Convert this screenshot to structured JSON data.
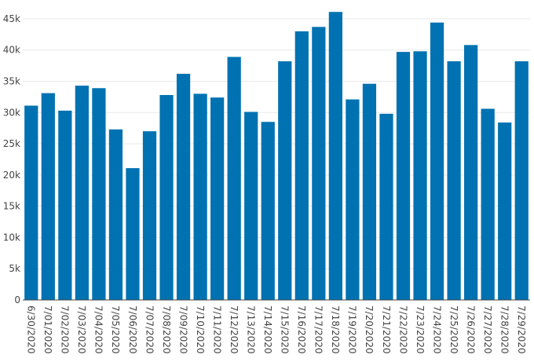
{
  "chart_data": {
    "type": "bar",
    "categories": [
      "6/30/2020",
      "7/01/2020",
      "7/02/2020",
      "7/03/2020",
      "7/04/2020",
      "7/05/2020",
      "7/06/2020",
      "7/07/2020",
      "7/08/2020",
      "7/09/2020",
      "7/10/2020",
      "7/11/2020",
      "7/12/2020",
      "7/13/2020",
      "7/14/2020",
      "7/15/2020",
      "7/16/2020",
      "7/17/2020",
      "7/18/2020",
      "7/19/2020",
      "7/20/2020",
      "7/21/2020",
      "7/22/2020",
      "7/23/2020",
      "7/24/2020",
      "7/25/2020",
      "7/26/2020",
      "7/27/2020",
      "7/28/2020",
      "7/29/2020"
    ],
    "values": [
      31100,
      33100,
      30300,
      34300,
      33900,
      27300,
      21100,
      27000,
      32800,
      36200,
      33000,
      32400,
      38900,
      30100,
      28500,
      38200,
      43000,
      43700,
      46100,
      32100,
      34600,
      29800,
      39700,
      39800,
      44400,
      38200,
      40800,
      30600,
      28400,
      38200
    ],
    "title": "",
    "xlabel": "",
    "ylabel": "",
    "ylim": [
      0,
      46500
    ],
    "yticks": [
      0,
      5000,
      10000,
      15000,
      20000,
      25000,
      30000,
      35000,
      40000,
      45000
    ],
    "ytick_labels": [
      "0",
      "5k",
      "10k",
      "15k",
      "20k",
      "25k",
      "30k",
      "35k",
      "40k",
      "45k"
    ],
    "bar_color": "#0072b2",
    "grid": true,
    "grid_color": "#e9e9e9"
  }
}
